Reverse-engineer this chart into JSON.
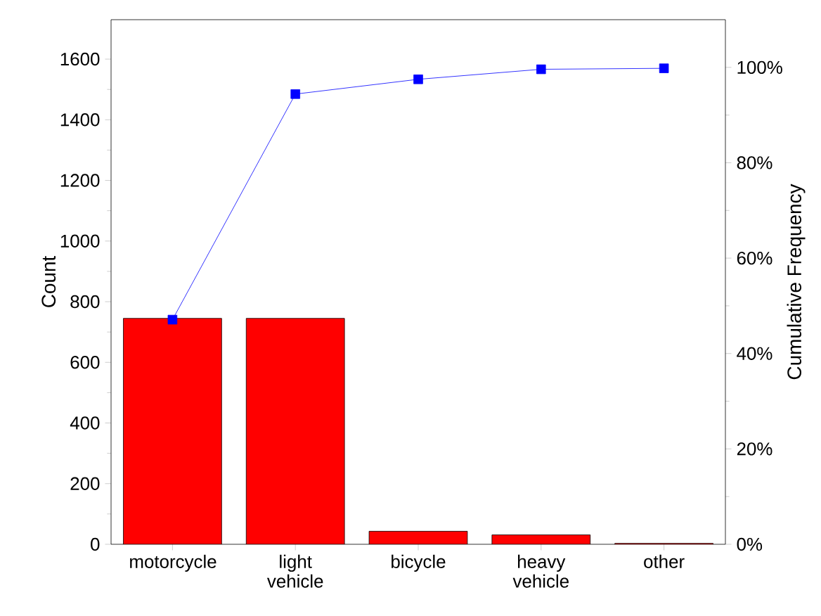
{
  "chart_data": {
    "type": "bar",
    "ylabel": "Count",
    "y2label": "Cumulative Frequency",
    "categories": [
      "motorcycle",
      "light vehicle",
      "bicycle",
      "heavy vehicle",
      "other"
    ],
    "series": [
      {
        "color": "#ff0000",
        "values": [
          745,
          745,
          43,
          31,
          3
        ]
      },
      {
        "type": "line",
        "axis": "y2",
        "color": "#0000ff",
        "values": [
          47.1,
          94.4,
          97.5,
          99.6,
          99.8
        ]
      }
    ],
    "marker": "square",
    "line_style": "solid",
    "grid": false,
    "ylim": [
      0,
      1730
    ],
    "yticks": [
      0,
      200,
      400,
      600,
      800,
      1000,
      1200,
      1400,
      1600
    ],
    "y2lim": [
      0,
      110
    ],
    "y2ticks": [
      {
        "value": 0,
        "label": "0%"
      },
      {
        "value": 20,
        "label": "20%"
      },
      {
        "value": 40,
        "label": "40%"
      },
      {
        "value": 60,
        "label": "60%"
      },
      {
        "value": 80,
        "label": "80%"
      },
      {
        "value": 100,
        "label": "100%"
      }
    ]
  }
}
